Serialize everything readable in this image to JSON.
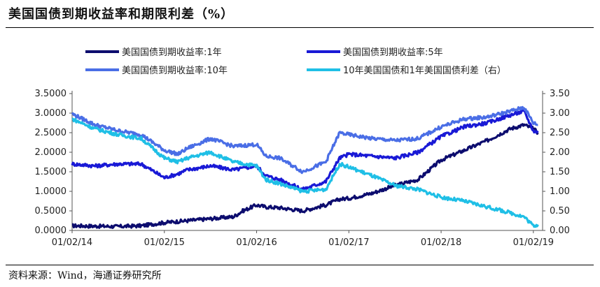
{
  "title": "美国国债到期收益率和期限利差（%）",
  "source": "资料来源：Wind，海通证券研究所",
  "chart_data": {
    "type": "line",
    "x_ticks": [
      "01/02/14",
      "01/02/15",
      "01/02/16",
      "01/02/17",
      "01/02/18",
      "01/02/19"
    ],
    "y_left_ticks": [
      "0.0000",
      "0.5000",
      "1.0000",
      "1.5000",
      "2.0000",
      "2.5000",
      "3.0000",
      "3.5000"
    ],
    "y_right_ticks": [
      "0.00",
      "0.50",
      "1.00",
      "1.50",
      "2.00",
      "2.50",
      "3.00",
      "3.50"
    ],
    "ylim_left": [
      0,
      3.5
    ],
    "ylim_right": [
      0,
      3.5
    ],
    "x_range": [
      2014.0,
      2019.1
    ],
    "grid": false,
    "legend_position": "top",
    "series": [
      {
        "name": "美国国债到期收益率:1年",
        "axis": "left",
        "color": "#0c0c6e",
        "x": [
          2014.0,
          2014.25,
          2014.5,
          2014.75,
          2015.0,
          2015.25,
          2015.5,
          2015.75,
          2015.85,
          2016.0,
          2016.1,
          2016.25,
          2016.5,
          2016.75,
          2016.9,
          2017.0,
          2017.25,
          2017.5,
          2017.75,
          2018.0,
          2018.25,
          2018.5,
          2018.75,
          2018.9,
          2019.0,
          2019.05
        ],
        "values": [
          0.12,
          0.11,
          0.1,
          0.12,
          0.2,
          0.25,
          0.3,
          0.35,
          0.5,
          0.65,
          0.6,
          0.58,
          0.5,
          0.65,
          0.8,
          0.82,
          0.95,
          1.15,
          1.3,
          1.8,
          2.05,
          2.3,
          2.6,
          2.7,
          2.6,
          2.5
        ]
      },
      {
        "name": "美国国债到期收益率:5年",
        "axis": "left",
        "color": "#1919d6",
        "x": [
          2014.0,
          2014.25,
          2014.5,
          2014.75,
          2015.0,
          2015.15,
          2015.25,
          2015.5,
          2015.75,
          2016.0,
          2016.1,
          2016.25,
          2016.5,
          2016.75,
          2016.9,
          2017.0,
          2017.25,
          2017.5,
          2017.75,
          2018.0,
          2018.25,
          2018.5,
          2018.75,
          2018.9,
          2019.0,
          2019.05
        ],
        "values": [
          1.7,
          1.65,
          1.7,
          1.7,
          1.35,
          1.45,
          1.55,
          1.65,
          1.55,
          1.65,
          1.4,
          1.3,
          1.05,
          1.25,
          1.85,
          1.95,
          1.9,
          1.85,
          2.0,
          2.4,
          2.65,
          2.75,
          2.95,
          3.05,
          2.55,
          2.5
        ]
      },
      {
        "name": "美国国债到期收益率:10年",
        "axis": "left",
        "color": "#4a6ee6",
        "x": [
          2014.0,
          2014.25,
          2014.5,
          2014.75,
          2015.0,
          2015.15,
          2015.25,
          2015.5,
          2015.75,
          2016.0,
          2016.1,
          2016.25,
          2016.5,
          2016.75,
          2016.9,
          2017.0,
          2017.25,
          2017.5,
          2017.75,
          2018.0,
          2018.25,
          2018.5,
          2018.75,
          2018.9,
          2019.0,
          2019.05
        ],
        "values": [
          2.98,
          2.7,
          2.55,
          2.45,
          2.05,
          1.95,
          2.1,
          2.35,
          2.15,
          2.2,
          1.9,
          1.85,
          1.5,
          1.75,
          2.5,
          2.45,
          2.35,
          2.3,
          2.35,
          2.65,
          2.85,
          2.9,
          3.05,
          3.15,
          2.75,
          2.7
        ]
      },
      {
        "name": "10年美国国债和1年美国国债利差（右）",
        "axis": "right",
        "color": "#1fbfe6",
        "x": [
          2014.0,
          2014.25,
          2014.5,
          2014.75,
          2015.0,
          2015.15,
          2015.25,
          2015.5,
          2015.75,
          2016.0,
          2016.1,
          2016.25,
          2016.5,
          2016.75,
          2016.9,
          2017.0,
          2017.25,
          2017.5,
          2017.75,
          2018.0,
          2018.25,
          2018.5,
          2018.75,
          2018.9,
          2019.0,
          2019.05
        ],
        "values": [
          2.85,
          2.6,
          2.45,
          2.35,
          1.85,
          1.75,
          1.85,
          2.0,
          1.75,
          1.65,
          1.3,
          1.2,
          1.0,
          1.05,
          1.7,
          1.62,
          1.4,
          1.15,
          1.05,
          0.85,
          0.75,
          0.6,
          0.45,
          0.35,
          0.12,
          0.15
        ]
      }
    ]
  }
}
